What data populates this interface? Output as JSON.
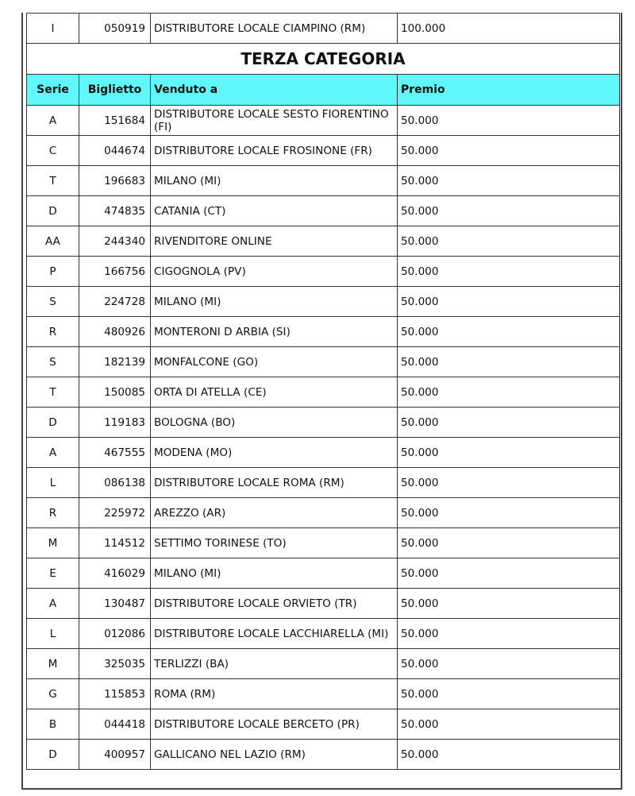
{
  "previous_row": {
    "serie": "I",
    "biglietto": "050919",
    "venduto_a": "DISTRIBUTORE LOCALE CIAMPINO (RM)",
    "premio": "100.000"
  },
  "section_title": "TERZA CATEGORIA",
  "header_color": "#5ff8fb",
  "columns": [
    "Serie",
    "Biglietto",
    "Venduto a",
    "Premio"
  ],
  "rows": [
    {
      "serie": "A",
      "biglietto": "151684",
      "venduto_a": "DISTRIBUTORE LOCALE SESTO FIORENTINO (FI)",
      "premio": "50.000"
    },
    {
      "serie": "C",
      "biglietto": "044674",
      "venduto_a": "DISTRIBUTORE LOCALE FROSINONE (FR)",
      "premio": "50.000"
    },
    {
      "serie": "T",
      "biglietto": "196683",
      "venduto_a": "MILANO (MI)",
      "premio": "50.000"
    },
    {
      "serie": "D",
      "biglietto": "474835",
      "venduto_a": "CATANIA (CT)",
      "premio": "50.000"
    },
    {
      "serie": "AA",
      "biglietto": "244340",
      "venduto_a": "RIVENDITORE ONLINE",
      "premio": "50.000"
    },
    {
      "serie": "P",
      "biglietto": "166756",
      "venduto_a": "CIGOGNOLA (PV)",
      "premio": "50.000"
    },
    {
      "serie": "S",
      "biglietto": "224728",
      "venduto_a": "MILANO (MI)",
      "premio": "50.000"
    },
    {
      "serie": "R",
      "biglietto": "480926",
      "venduto_a": "MONTERONI D ARBIA (SI)",
      "premio": "50.000"
    },
    {
      "serie": "S",
      "biglietto": "182139",
      "venduto_a": "MONFALCONE (GO)",
      "premio": "50.000"
    },
    {
      "serie": "T",
      "biglietto": "150085",
      "venduto_a": "ORTA DI ATELLA (CE)",
      "premio": "50.000"
    },
    {
      "serie": "D",
      "biglietto": "119183",
      "venduto_a": "BOLOGNA (BO)",
      "premio": "50.000"
    },
    {
      "serie": "A",
      "biglietto": "467555",
      "venduto_a": "MODENA (MO)",
      "premio": "50.000"
    },
    {
      "serie": "L",
      "biglietto": "086138",
      "venduto_a": "DISTRIBUTORE LOCALE ROMA (RM)",
      "premio": "50.000"
    },
    {
      "serie": "R",
      "biglietto": "225972",
      "venduto_a": "AREZZO (AR)",
      "premio": "50.000"
    },
    {
      "serie": "M",
      "biglietto": "114512",
      "venduto_a": "SETTIMO TORINESE (TO)",
      "premio": "50.000"
    },
    {
      "serie": "E",
      "biglietto": "416029",
      "venduto_a": "MILANO (MI)",
      "premio": "50.000"
    },
    {
      "serie": "A",
      "biglietto": "130487",
      "venduto_a": "DISTRIBUTORE LOCALE ORVIETO (TR)",
      "premio": "50.000"
    },
    {
      "serie": "L",
      "biglietto": "012086",
      "venduto_a": "DISTRIBUTORE LOCALE LACCHIARELLA (MI)",
      "premio": "50.000"
    },
    {
      "serie": "M",
      "biglietto": "325035",
      "venduto_a": "TERLIZZI (BA)",
      "premio": "50.000"
    },
    {
      "serie": "G",
      "biglietto": "115853",
      "venduto_a": "ROMA (RM)",
      "premio": "50.000"
    },
    {
      "serie": "B",
      "biglietto": "044418",
      "venduto_a": "DISTRIBUTORE LOCALE BERCETO (PR)",
      "premio": "50.000"
    },
    {
      "serie": "D",
      "biglietto": "400957",
      "venduto_a": "GALLICANO NEL LAZIO (RM)",
      "premio": "50.000"
    }
  ]
}
